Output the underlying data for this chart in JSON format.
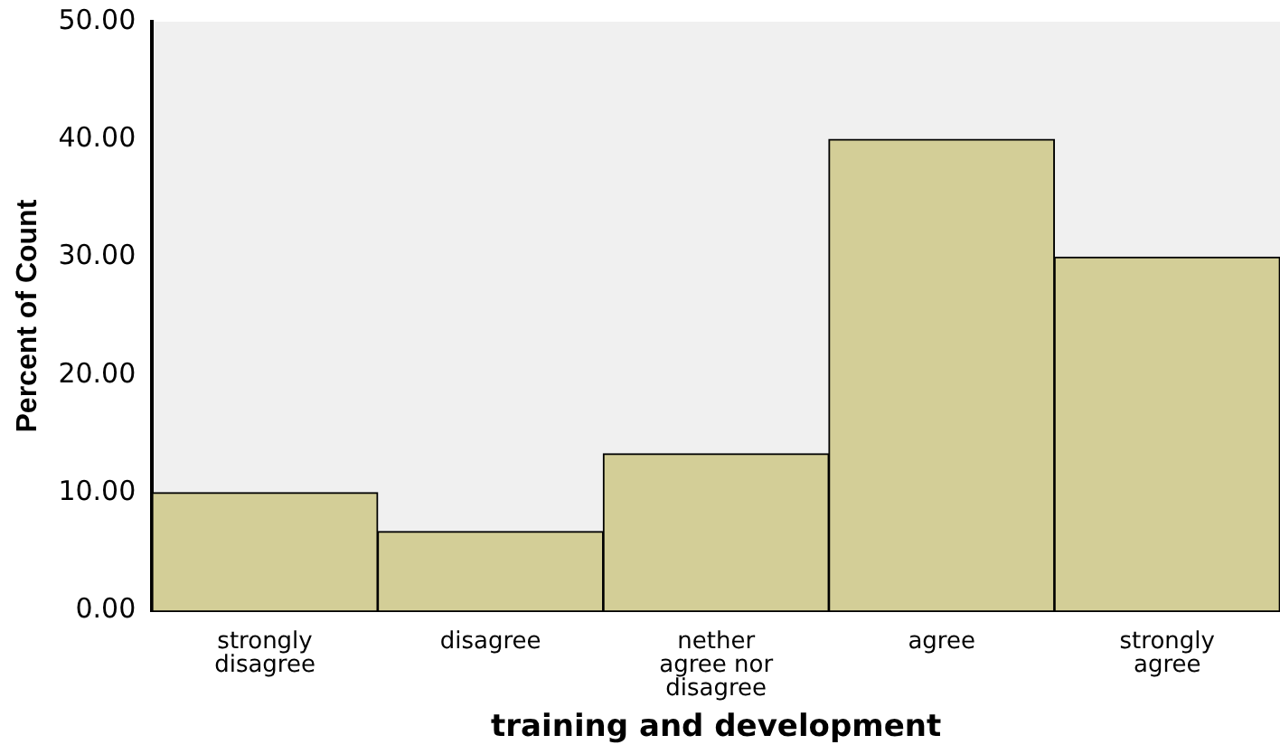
{
  "chart_data": {
    "type": "bar",
    "xlabel": "training and development",
    "ylabel": "Percent of Count",
    "categories": [
      "strongly disagree",
      "disagree",
      "nether agree nor disagree",
      "agree",
      "strongly agree"
    ],
    "values": [
      10,
      6.7,
      13.3,
      40,
      30
    ],
    "color": "#d3ce97",
    "ylim": [
      0,
      50
    ],
    "yticks": [
      {
        "value": 0,
        "label": "0.00"
      },
      {
        "value": 10,
        "label": "10.00"
      },
      {
        "value": 20,
        "label": "20.00"
      },
      {
        "value": 30,
        "label": "30.00"
      },
      {
        "value": 40,
        "label": "40.00"
      },
      {
        "value": 50,
        "label": "50.00"
      }
    ],
    "legend": false
  }
}
